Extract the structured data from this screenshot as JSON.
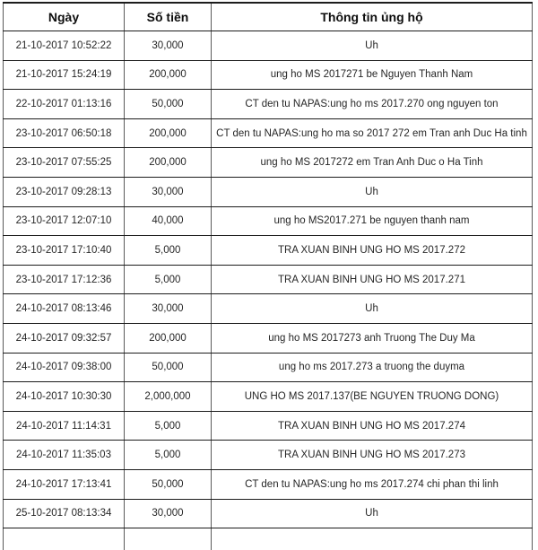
{
  "table": {
    "columns": [
      {
        "label": "Ngày"
      },
      {
        "label": "Số tiền"
      },
      {
        "label": "Thông tin ủng hộ"
      }
    ],
    "rows": [
      {
        "date": "21-10-2017 10:52:22",
        "amount": "30,000",
        "info": "Uh"
      },
      {
        "date": "21-10-2017 15:24:19",
        "amount": "200,000",
        "info": "ung ho MS 2017271 be Nguyen Thanh Nam"
      },
      {
        "date": "22-10-2017 01:13:16",
        "amount": "50,000",
        "info": "CT den tu NAPAS:ung ho ms 2017.270 ong nguyen ton"
      },
      {
        "date": "23-10-2017 06:50:18",
        "amount": "200,000",
        "info": "CT den tu NAPAS:ung ho ma so 2017 272 em Tran anh Duc Ha tinh"
      },
      {
        "date": "23-10-2017 07:55:25",
        "amount": "200,000",
        "info": "ung ho MS 2017272 em Tran Anh Duc o Ha Tinh"
      },
      {
        "date": "23-10-2017 09:28:13",
        "amount": "30,000",
        "info": "Uh"
      },
      {
        "date": "23-10-2017 12:07:10",
        "amount": "40,000",
        "info": "ung ho MS2017.271 be nguyen thanh nam"
      },
      {
        "date": "23-10-2017 17:10:40",
        "amount": "5,000",
        "info": "TRA XUAN BINH UNG HO MS 2017.272"
      },
      {
        "date": "23-10-2017 17:12:36",
        "amount": "5,000",
        "info": "TRA XUAN BINH UNG HO MS 2017.271"
      },
      {
        "date": "24-10-2017 08:13:46",
        "amount": "30,000",
        "info": "Uh"
      },
      {
        "date": "24-10-2017 09:32:57",
        "amount": "200,000",
        "info": "ung ho MS 2017273 anh Truong The Duy Ma"
      },
      {
        "date": "24-10-2017 09:38:00",
        "amount": "50,000",
        "info": "ung ho ms 2017.273 a truong the duyma"
      },
      {
        "date": "24-10-2017 10:30:30",
        "amount": "2,000,000",
        "info": "UNG HO MS 2017.137(BE NGUYEN TRUONG DONG)"
      },
      {
        "date": "24-10-2017 11:14:31",
        "amount": "5,000",
        "info": "TRA XUAN BINH UNG HO MS 2017.274"
      },
      {
        "date": "24-10-2017 11:35:03",
        "amount": "5,000",
        "info": "TRA XUAN BINH UNG HO MS 2017.273"
      },
      {
        "date": "24-10-2017 17:13:41",
        "amount": "50,000",
        "info": "CT den tu NAPAS:ung ho ms 2017.274 chi phan thi linh"
      },
      {
        "date": "25-10-2017 08:13:34",
        "amount": "30,000",
        "info": "Uh"
      }
    ]
  }
}
